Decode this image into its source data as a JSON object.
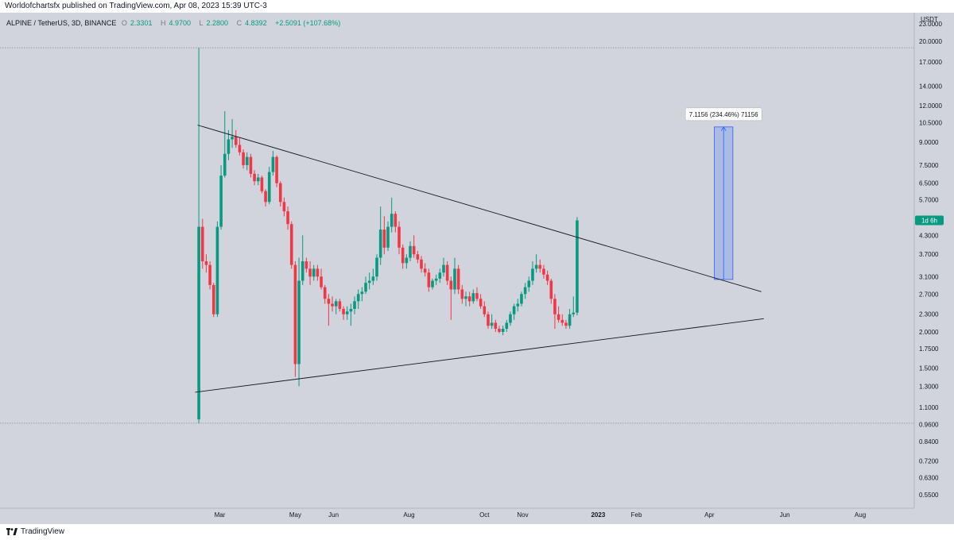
{
  "publisher_line": "Worldofchartsfx published on TradingView.com, Apr 08, 2023 15:39 UTC-3",
  "header": {
    "symbol": "ALPINE / TetherUS, 3D, BINANCE",
    "o_label": "O",
    "o_value": "2.3301",
    "h_label": "H",
    "h_value": "4.9700",
    "l_label": "L",
    "l_value": "2.2800",
    "c_label": "C",
    "c_value": "4.8392",
    "change": "+2.5091 (+107.68%)"
  },
  "footer": {
    "brand": "TradingView"
  },
  "colors": {
    "up": "#089981",
    "down": "#f23645",
    "background": "#d1d4dc",
    "measure": "#2962ff"
  },
  "chart_data": {
    "type": "candlestick",
    "y_scale": "log",
    "ylim": [
      0.52,
      25
    ],
    "currency_label": "USDT",
    "y_ticks": [
      23,
      20,
      17,
      14,
      12,
      10.5,
      9,
      7.5,
      6.5,
      5.7,
      4.3,
      3.7,
      3.1,
      2.7,
      2.3,
      2.0,
      1.75,
      1.5,
      1.3,
      1.1,
      0.96,
      0.84,
      0.72,
      0.63,
      0.55
    ],
    "y_tick_labels": [
      "23.0000",
      "20.0000",
      "17.0000",
      "14.0000",
      "12.0000",
      "10.5000",
      "9.0000",
      "7.5000",
      "6.5000",
      "5.7000",
      "4.3000",
      "3.7000",
      "3.1000",
      "2.7000",
      "2.3000",
      "2.0000",
      "1.7500",
      "1.5000",
      "1.3000",
      "1.1000",
      "0.9600",
      "0.8400",
      "0.7200",
      "0.6300",
      "0.5500"
    ],
    "x_labels": [
      "Mar",
      "May",
      "Jun",
      "Aug",
      "Oct",
      "Nov",
      "2023",
      "Feb",
      "Apr",
      "Jun",
      "Aug"
    ],
    "bold_x_label": "2023",
    "last_price_badge": "1d 6h",
    "last_price": 4.84,
    "dotted_levels": [
      19.0,
      0.97
    ],
    "trendlines": [
      {
        "name": "upper",
        "from": [
          "2022-02-11",
          10.3
        ],
        "to": [
          "2023-05-13",
          2.75
        ]
      },
      {
        "name": "lower",
        "from": [
          "2022-02-09",
          1.24
        ],
        "to": [
          "2023-05-15",
          2.22
        ]
      }
    ],
    "measure": {
      "from": [
        "2023-04-05",
        3.03
      ],
      "to": [
        "2023-04-20",
        10.15
      ],
      "label": "7.1156 (234.46%) 71156"
    },
    "candles": [
      {
        "o": 1.0,
        "h": 19.0,
        "l": 0.97,
        "c": 4.6
      },
      {
        "o": 4.6,
        "h": 4.9,
        "l": 3.3,
        "c": 3.5
      },
      {
        "o": 3.5,
        "h": 3.7,
        "l": 3.2,
        "c": 3.4
      },
      {
        "o": 3.4,
        "h": 3.5,
        "l": 2.8,
        "c": 2.9
      },
      {
        "o": 2.9,
        "h": 2.95,
        "l": 2.25,
        "c": 2.3
      },
      {
        "o": 2.3,
        "h": 4.8,
        "l": 2.25,
        "c": 4.6
      },
      {
        "o": 4.6,
        "h": 7.5,
        "l": 4.5,
        "c": 6.9
      },
      {
        "o": 6.9,
        "h": 11.5,
        "l": 6.8,
        "c": 8.2
      },
      {
        "o": 8.2,
        "h": 9.9,
        "l": 7.8,
        "c": 9.2
      },
      {
        "o": 9.2,
        "h": 10.8,
        "l": 8.6,
        "c": 9.4
      },
      {
        "o": 9.4,
        "h": 9.9,
        "l": 8.6,
        "c": 8.8
      },
      {
        "o": 8.8,
        "h": 9.3,
        "l": 8.1,
        "c": 8.3
      },
      {
        "o": 8.3,
        "h": 8.5,
        "l": 7.3,
        "c": 7.5
      },
      {
        "o": 7.5,
        "h": 8.3,
        "l": 7.2,
        "c": 8.0
      },
      {
        "o": 8.0,
        "h": 8.2,
        "l": 6.8,
        "c": 7.0
      },
      {
        "o": 7.0,
        "h": 7.2,
        "l": 6.4,
        "c": 6.6
      },
      {
        "o": 6.6,
        "h": 7.0,
        "l": 6.4,
        "c": 6.8
      },
      {
        "o": 6.8,
        "h": 6.9,
        "l": 6.0,
        "c": 6.1
      },
      {
        "o": 6.1,
        "h": 6.2,
        "l": 5.4,
        "c": 5.6
      },
      {
        "o": 5.6,
        "h": 7.4,
        "l": 5.5,
        "c": 7.1
      },
      {
        "o": 7.1,
        "h": 8.4,
        "l": 6.9,
        "c": 8.0
      },
      {
        "o": 8.0,
        "h": 8.1,
        "l": 6.3,
        "c": 6.5
      },
      {
        "o": 6.5,
        "h": 6.6,
        "l": 5.4,
        "c": 5.6
      },
      {
        "o": 5.6,
        "h": 5.8,
        "l": 5.0,
        "c": 5.2
      },
      {
        "o": 5.2,
        "h": 5.4,
        "l": 4.5,
        "c": 4.7
      },
      {
        "o": 4.7,
        "h": 4.8,
        "l": 3.3,
        "c": 3.4
      },
      {
        "o": 3.4,
        "h": 3.5,
        "l": 1.4,
        "c": 1.55
      },
      {
        "o": 1.55,
        "h": 3.6,
        "l": 1.3,
        "c": 3.0
      },
      {
        "o": 3.0,
        "h": 4.3,
        "l": 2.9,
        "c": 3.5
      },
      {
        "o": 3.5,
        "h": 3.6,
        "l": 3.2,
        "c": 3.3
      },
      {
        "o": 3.3,
        "h": 3.5,
        "l": 2.9,
        "c": 3.1
      },
      {
        "o": 3.1,
        "h": 3.4,
        "l": 3.0,
        "c": 3.3
      },
      {
        "o": 3.3,
        "h": 3.4,
        "l": 3.0,
        "c": 3.1
      },
      {
        "o": 3.1,
        "h": 3.3,
        "l": 2.8,
        "c": 2.85
      },
      {
        "o": 2.85,
        "h": 2.9,
        "l": 2.5,
        "c": 2.6
      },
      {
        "o": 2.6,
        "h": 2.7,
        "l": 2.1,
        "c": 2.5
      },
      {
        "o": 2.5,
        "h": 2.65,
        "l": 2.35,
        "c": 2.45
      },
      {
        "o": 2.45,
        "h": 2.6,
        "l": 2.3,
        "c": 2.55
      },
      {
        "o": 2.55,
        "h": 2.6,
        "l": 2.35,
        "c": 2.4
      },
      {
        "o": 2.4,
        "h": 2.45,
        "l": 2.2,
        "c": 2.3
      },
      {
        "o": 2.3,
        "h": 2.45,
        "l": 2.2,
        "c": 2.35
      },
      {
        "o": 2.35,
        "h": 2.5,
        "l": 2.1,
        "c": 2.4
      },
      {
        "o": 2.4,
        "h": 2.65,
        "l": 2.3,
        "c": 2.55
      },
      {
        "o": 2.55,
        "h": 2.8,
        "l": 2.4,
        "c": 2.7
      },
      {
        "o": 2.7,
        "h": 2.85,
        "l": 2.55,
        "c": 2.75
      },
      {
        "o": 2.75,
        "h": 3.1,
        "l": 2.7,
        "c": 2.95
      },
      {
        "o": 2.95,
        "h": 3.2,
        "l": 2.8,
        "c": 3.0
      },
      {
        "o": 3.0,
        "h": 3.3,
        "l": 2.9,
        "c": 3.1
      },
      {
        "o": 3.1,
        "h": 3.7,
        "l": 3.0,
        "c": 3.6
      },
      {
        "o": 3.6,
        "h": 5.4,
        "l": 3.4,
        "c": 4.5
      },
      {
        "o": 4.5,
        "h": 5.0,
        "l": 3.7,
        "c": 3.9
      },
      {
        "o": 3.9,
        "h": 4.8,
        "l": 3.8,
        "c": 4.6
      },
      {
        "o": 4.6,
        "h": 5.8,
        "l": 4.4,
        "c": 5.1
      },
      {
        "o": 5.1,
        "h": 5.2,
        "l": 4.4,
        "c": 4.6
      },
      {
        "o": 4.6,
        "h": 4.8,
        "l": 3.7,
        "c": 3.9
      },
      {
        "o": 3.9,
        "h": 4.0,
        "l": 3.3,
        "c": 3.45
      },
      {
        "o": 3.45,
        "h": 3.7,
        "l": 3.3,
        "c": 3.6
      },
      {
        "o": 3.6,
        "h": 4.1,
        "l": 3.5,
        "c": 3.95
      },
      {
        "o": 3.95,
        "h": 4.3,
        "l": 3.6,
        "c": 3.7
      },
      {
        "o": 3.7,
        "h": 3.8,
        "l": 3.45,
        "c": 3.55
      },
      {
        "o": 3.55,
        "h": 3.65,
        "l": 3.2,
        "c": 3.3
      },
      {
        "o": 3.3,
        "h": 3.45,
        "l": 3.1,
        "c": 3.2
      },
      {
        "o": 3.2,
        "h": 3.3,
        "l": 2.75,
        "c": 2.85
      },
      {
        "o": 2.85,
        "h": 3.05,
        "l": 2.8,
        "c": 3.0
      },
      {
        "o": 3.0,
        "h": 3.15,
        "l": 2.9,
        "c": 3.05
      },
      {
        "o": 3.05,
        "h": 3.3,
        "l": 2.95,
        "c": 3.2
      },
      {
        "o": 3.2,
        "h": 3.6,
        "l": 3.1,
        "c": 3.4
      },
      {
        "o": 3.4,
        "h": 3.5,
        "l": 2.9,
        "c": 3.0
      },
      {
        "o": 3.0,
        "h": 3.1,
        "l": 2.2,
        "c": 2.8
      },
      {
        "o": 2.8,
        "h": 3.6,
        "l": 2.7,
        "c": 3.3
      },
      {
        "o": 3.3,
        "h": 3.4,
        "l": 2.7,
        "c": 2.8
      },
      {
        "o": 2.8,
        "h": 2.9,
        "l": 2.5,
        "c": 2.6
      },
      {
        "o": 2.6,
        "h": 2.75,
        "l": 2.45,
        "c": 2.65
      },
      {
        "o": 2.65,
        "h": 2.75,
        "l": 2.45,
        "c": 2.55
      },
      {
        "o": 2.55,
        "h": 2.8,
        "l": 2.5,
        "c": 2.72
      },
      {
        "o": 2.72,
        "h": 2.85,
        "l": 2.55,
        "c": 2.6
      },
      {
        "o": 2.6,
        "h": 2.7,
        "l": 2.4,
        "c": 2.45
      },
      {
        "o": 2.45,
        "h": 2.55,
        "l": 2.25,
        "c": 2.3
      },
      {
        "o": 2.3,
        "h": 2.35,
        "l": 2.05,
        "c": 2.1
      },
      {
        "o": 2.1,
        "h": 2.3,
        "l": 2.05,
        "c": 2.15
      },
      {
        "o": 2.15,
        "h": 2.2,
        "l": 2.0,
        "c": 2.05
      },
      {
        "o": 2.05,
        "h": 2.1,
        "l": 1.98,
        "c": 2.0
      },
      {
        "o": 2.0,
        "h": 2.1,
        "l": 1.95,
        "c": 2.05
      },
      {
        "o": 2.05,
        "h": 2.2,
        "l": 2.0,
        "c": 2.15
      },
      {
        "o": 2.15,
        "h": 2.35,
        "l": 2.1,
        "c": 2.3
      },
      {
        "o": 2.3,
        "h": 2.5,
        "l": 2.2,
        "c": 2.45
      },
      {
        "o": 2.45,
        "h": 2.6,
        "l": 2.35,
        "c": 2.5
      },
      {
        "o": 2.5,
        "h": 2.75,
        "l": 2.45,
        "c": 2.7
      },
      {
        "o": 2.7,
        "h": 2.95,
        "l": 2.6,
        "c": 2.85
      },
      {
        "o": 2.85,
        "h": 3.1,
        "l": 2.75,
        "c": 3.0
      },
      {
        "o": 3.0,
        "h": 3.5,
        "l": 2.9,
        "c": 3.3
      },
      {
        "o": 3.3,
        "h": 3.7,
        "l": 3.2,
        "c": 3.4
      },
      {
        "o": 3.4,
        "h": 3.55,
        "l": 3.2,
        "c": 3.3
      },
      {
        "o": 3.3,
        "h": 3.4,
        "l": 3.05,
        "c": 3.15
      },
      {
        "o": 3.15,
        "h": 3.25,
        "l": 2.9,
        "c": 3.0
      },
      {
        "o": 3.0,
        "h": 3.05,
        "l": 2.5,
        "c": 2.6
      },
      {
        "o": 2.6,
        "h": 2.7,
        "l": 2.05,
        "c": 2.3
      },
      {
        "o": 2.3,
        "h": 2.45,
        "l": 2.15,
        "c": 2.2
      },
      {
        "o": 2.2,
        "h": 2.3,
        "l": 2.1,
        "c": 2.15
      },
      {
        "o": 2.15,
        "h": 2.2,
        "l": 2.05,
        "c": 2.1
      },
      {
        "o": 2.1,
        "h": 2.4,
        "l": 2.05,
        "c": 2.3
      },
      {
        "o": 2.3,
        "h": 2.65,
        "l": 2.25,
        "c": 2.33
      },
      {
        "o": 2.33,
        "h": 4.97,
        "l": 2.28,
        "c": 4.84
      }
    ]
  }
}
